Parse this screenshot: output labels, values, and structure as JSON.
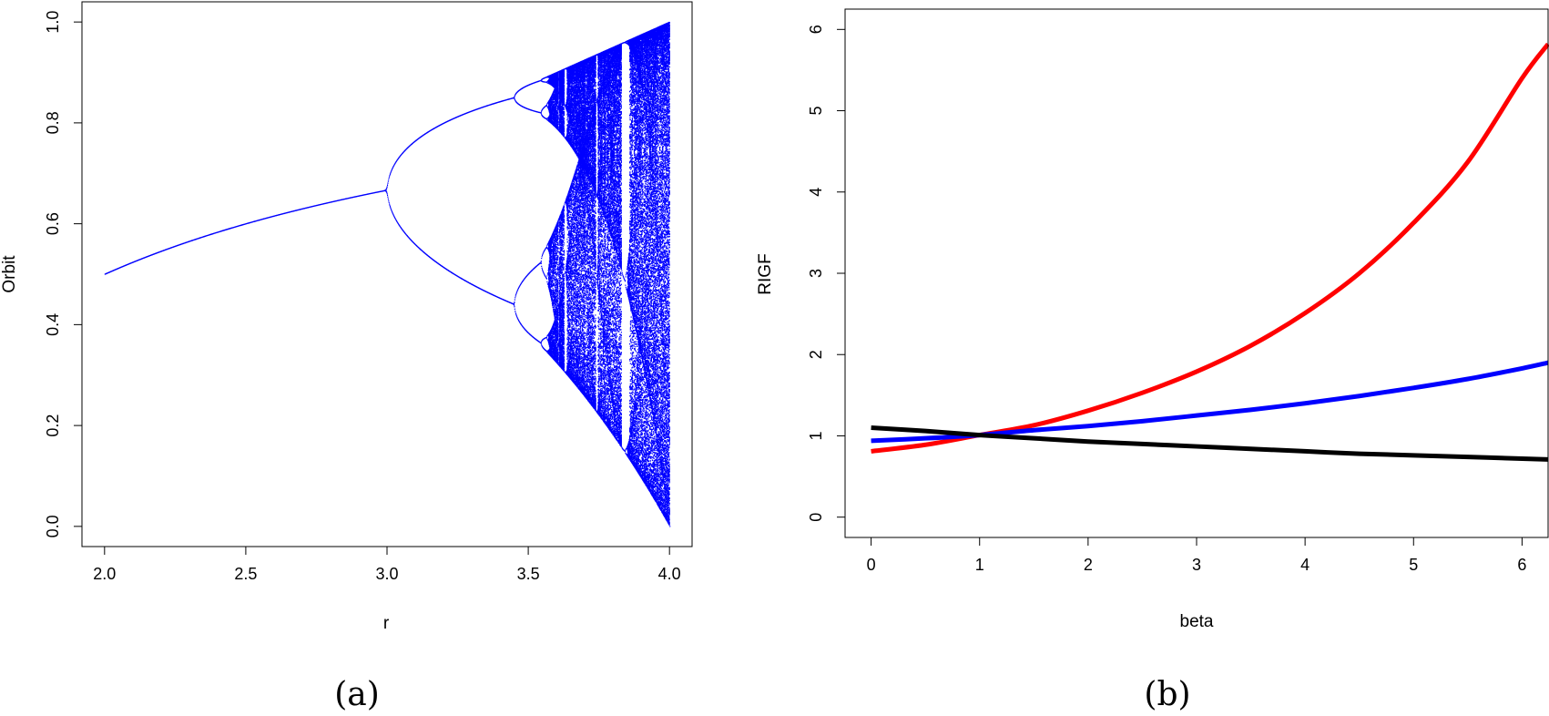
{
  "chart_data": [
    {
      "type": "scatter",
      "description_source": "logistic map bifurcation diagram",
      "xlabel": "r",
      "ylabel": "Orbit",
      "xlim": [
        1.92,
        4.08
      ],
      "ylim": [
        -0.04,
        1.04
      ],
      "x_ticks": [
        "2.0",
        "2.5",
        "3.0",
        "3.5",
        "4.0"
      ],
      "y_ticks": [
        "0.0",
        "0.2",
        "0.4",
        "0.6",
        "0.8",
        "1.0"
      ],
      "r_min": 2.0,
      "r_max": 4.0,
      "point_color": "#0000ff",
      "caption": "(a)"
    },
    {
      "type": "line",
      "xlabel": "beta",
      "ylabel": "RIGF",
      "xlim": [
        -0.24,
        6.24
      ],
      "ylim": [
        -0.25,
        6.25
      ],
      "x_ticks": [
        "0",
        "1",
        "2",
        "3",
        "4",
        "5",
        "6"
      ],
      "y_ticks": [
        "0",
        "1",
        "2",
        "3",
        "4",
        "5",
        "6"
      ],
      "x": [
        0,
        0.5,
        1,
        1.5,
        2,
        2.5,
        3,
        3.5,
        4,
        4.5,
        5,
        5.5,
        6,
        6.24
      ],
      "series": [
        {
          "color": "#ff0000",
          "values": [
            0.81,
            0.89,
            1.01,
            1.13,
            1.31,
            1.53,
            1.79,
            2.11,
            2.51,
            3.0,
            3.62,
            4.37,
            5.4,
            5.82
          ]
        },
        {
          "color": "#0000ff",
          "values": [
            0.94,
            0.97,
            1.01,
            1.07,
            1.12,
            1.18,
            1.25,
            1.32,
            1.4,
            1.49,
            1.59,
            1.7,
            1.83,
            1.9
          ]
        },
        {
          "color": "#000000",
          "values": [
            1.1,
            1.06,
            1.01,
            0.97,
            0.93,
            0.9,
            0.87,
            0.84,
            0.81,
            0.78,
            0.76,
            0.74,
            0.72,
            0.71
          ]
        }
      ],
      "caption": "(b)"
    }
  ]
}
